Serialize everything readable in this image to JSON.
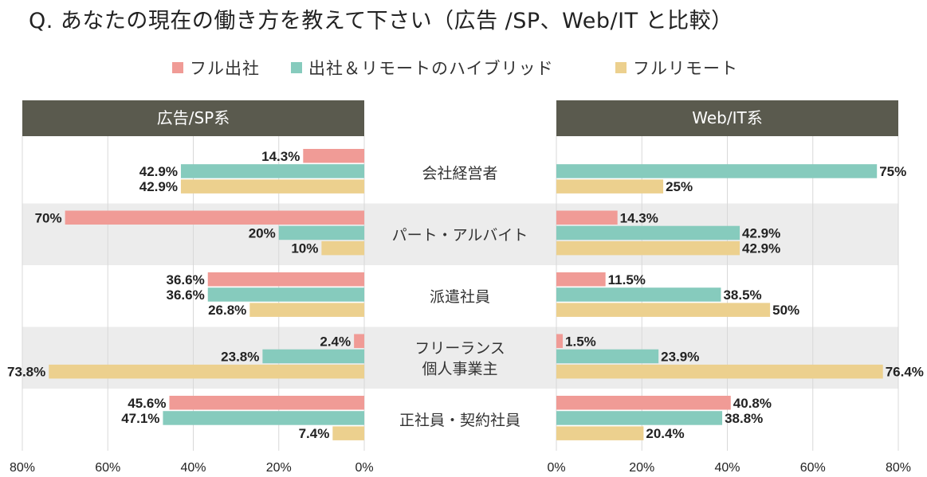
{
  "title": "Q. あなたの現在の働き方を教えて下さい（広告 /SP、Web/IT と比較）",
  "colors": {
    "full_office": "#f09b96",
    "hybrid": "#86cbbd",
    "full_remote": "#ecd08e",
    "panel_header": "#5a5a4e",
    "band": "#ececec",
    "grid": "#d8d8d8"
  },
  "legend": [
    {
      "label": "フル出社",
      "color_key": "full_office"
    },
    {
      "label": "出社＆リモートのハイブリッド",
      "color_key": "hybrid"
    },
    {
      "label": "フルリモート",
      "color_key": "full_remote"
    }
  ],
  "chart_data": {
    "type": "bar",
    "orientation": "horizontal",
    "title": "Q. あなたの現在の働き方を教えて下さい（広告 /SP、Web/IT と比較）",
    "series_names": [
      "フル出社",
      "出社＆リモートのハイブリッド",
      "フルリモート"
    ],
    "categories": [
      {
        "label_lines": [
          "会社経営者"
        ],
        "band": false
      },
      {
        "label_lines": [
          "パート・アルバイト"
        ],
        "band": true
      },
      {
        "label_lines": [
          "派遣社員"
        ],
        "band": false
      },
      {
        "label_lines": [
          "フリーランス",
          "個人事業主"
        ],
        "band": true
      },
      {
        "label_lines": [
          "正社員・契約社員"
        ],
        "band": false
      }
    ],
    "panels": [
      {
        "name": "広告/SP系",
        "direction": "left",
        "xlim": [
          0,
          80
        ],
        "ticks": [
          80,
          60,
          40,
          20,
          0
        ],
        "tick_labels": [
          "80%",
          "60%",
          "40%",
          "20%",
          "0%"
        ],
        "values": [
          [
            14.3,
            42.9,
            42.9
          ],
          [
            70,
            20,
            10
          ],
          [
            36.6,
            36.6,
            26.8
          ],
          [
            2.4,
            23.8,
            73.8
          ],
          [
            45.6,
            47.1,
            7.4
          ]
        ],
        "labels": [
          [
            "14.3%",
            "42.9%",
            "42.9%"
          ],
          [
            "70%",
            "20%",
            "10%"
          ],
          [
            "36.6%",
            "36.6%",
            "26.8%"
          ],
          [
            "2.4%",
            "23.8%",
            "73.8%"
          ],
          [
            "45.6%",
            "47.1%",
            "7.4%"
          ]
        ]
      },
      {
        "name": "Web/IT系",
        "direction": "right",
        "xlim": [
          0,
          80
        ],
        "ticks": [
          0,
          20,
          40,
          60,
          80
        ],
        "tick_labels": [
          "0%",
          "20%",
          "40%",
          "60%",
          "80%"
        ],
        "values": [
          [
            0,
            75,
            25
          ],
          [
            14.3,
            42.9,
            42.9
          ],
          [
            11.5,
            38.5,
            50
          ],
          [
            1.5,
            23.9,
            76.4
          ],
          [
            40.8,
            38.8,
            20.4
          ]
        ],
        "labels": [
          [
            "",
            "75%",
            "25%"
          ],
          [
            "14.3%",
            "42.9%",
            "42.9%"
          ],
          [
            "11.5%",
            "38.5%",
            "50%"
          ],
          [
            "1.5%",
            "23.9%",
            "76.4%"
          ],
          [
            "40.8%",
            "38.8%",
            "20.4%"
          ]
        ]
      }
    ]
  }
}
